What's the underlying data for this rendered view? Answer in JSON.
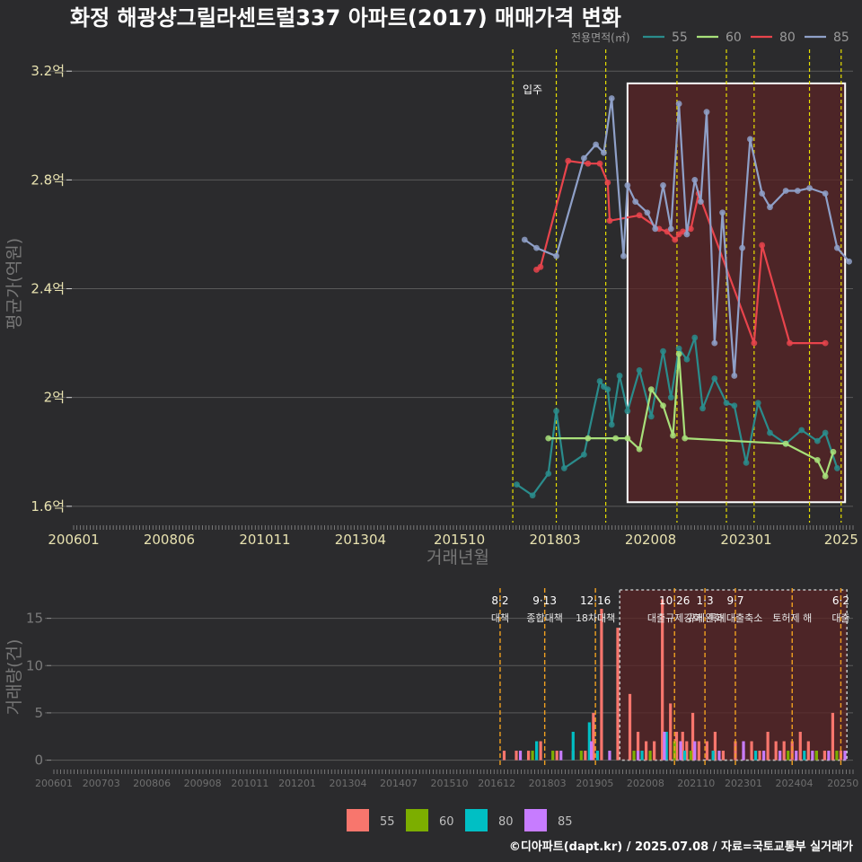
{
  "title": "화정 해광샹그릴라센트럴337 아파트(2017) 매매가격 변화",
  "footer": "©디아파트(dapt.kr) / 2025.07.08 / 자료=국토교통부 실거래가",
  "colors": {
    "background": "#2b2b2d",
    "grid": "#5a5a5a",
    "vline": "#e8e000",
    "vline_bottom": "#f0a020",
    "highlight_fill": "#5a2426",
    "s55": "#2a8c8c",
    "s60": "#a8e07a",
    "s80": "#e8444c",
    "s85": "#8fa0c8",
    "b55": "#f8766d",
    "b60": "#7cae00",
    "b80": "#00bfc4",
    "b85": "#c77cff"
  },
  "chart_data": [
    {
      "type": "line",
      "name": "price",
      "title": "화정 해광샹그릴라센트럴337 아파트(2017) 매매가격 변화",
      "xlabel": "거래년월",
      "ylabel": "평균가(억원)",
      "xlim": [
        2006.0,
        2025.7
      ],
      "ylim": [
        1.54,
        3.28
      ],
      "x_ticks": [
        {
          "v": 2006.0,
          "label": "200601"
        },
        {
          "v": 2008.4167,
          "label": "200806"
        },
        {
          "v": 2010.8333,
          "label": "201011"
        },
        {
          "v": 2013.25,
          "label": "201304"
        },
        {
          "v": 2015.75,
          "label": "201510"
        },
        {
          "v": 2018.1667,
          "label": "201803"
        },
        {
          "v": 2020.5833,
          "label": "202008"
        },
        {
          "v": 2023.0,
          "label": "202301"
        },
        {
          "v": 2025.4,
          "label": "2025"
        }
      ],
      "y_ticks": [
        {
          "v": 1.6,
          "label": "1.6억"
        },
        {
          "v": 2.0,
          "label": "2억"
        },
        {
          "v": 2.4,
          "label": "2.4억"
        },
        {
          "v": 2.8,
          "label": "2.8억"
        },
        {
          "v": 3.2,
          "label": "3.2억"
        }
      ],
      "legend_title": "전용면적(㎡)",
      "annotation": "입주",
      "vlines": [
        2017.1,
        2018.2,
        2019.45,
        2021.25,
        2022.5,
        2023.2,
        2024.6,
        2025.4
      ],
      "highlight": {
        "x0": 2020.0,
        "x1": 2025.5,
        "y0": 1.615,
        "y1": 3.155
      },
      "series": [
        {
          "name": "55",
          "color_key": "s55",
          "x": [
            2017.2,
            2017.6,
            2018.0,
            2018.2,
            2018.4,
            2018.9,
            2019.3,
            2019.4,
            2019.5,
            2019.6,
            2019.8,
            2020.0,
            2020.3,
            2020.6,
            2020.9,
            2021.1,
            2021.3,
            2021.5,
            2021.7,
            2021.9,
            2022.2,
            2022.5,
            2022.7,
            2023.0,
            2023.3,
            2023.6,
            2024.0,
            2024.4,
            2024.8,
            2025.0,
            2025.3
          ],
          "y": [
            1.68,
            1.64,
            1.72,
            1.95,
            1.74,
            1.79,
            2.06,
            2.04,
            2.03,
            1.9,
            2.08,
            1.95,
            2.1,
            1.93,
            2.17,
            2.0,
            2.18,
            2.14,
            2.22,
            1.96,
            2.07,
            1.98,
            1.97,
            1.76,
            1.98,
            1.87,
            1.83,
            1.88,
            1.84,
            1.87,
            1.74
          ]
        },
        {
          "name": "60",
          "color_key": "s60",
          "x": [
            2018.0,
            2019.0,
            2019.7,
            2020.0,
            2020.3,
            2020.6,
            2020.9,
            2021.15,
            2021.3,
            2021.45,
            2024.0,
            2024.8,
            2025.0,
            2025.2
          ],
          "y": [
            1.85,
            1.85,
            1.85,
            1.85,
            1.81,
            2.03,
            1.97,
            1.86,
            2.16,
            1.85,
            1.83,
            1.77,
            1.71,
            1.8
          ]
        },
        {
          "name": "80",
          "color_key": "s80",
          "x": [
            2017.7,
            2017.8,
            2018.5,
            2019.0,
            2019.3,
            2019.5,
            2019.55,
            2020.3,
            2020.8,
            2021.0,
            2021.2,
            2021.3,
            2021.4,
            2021.6,
            2021.8,
            2023.2,
            2023.4,
            2024.1,
            2025.0
          ],
          "y": [
            2.47,
            2.48,
            2.87,
            2.86,
            2.86,
            2.79,
            2.65,
            2.67,
            2.62,
            2.61,
            2.58,
            2.6,
            2.61,
            2.62,
            2.75,
            2.2,
            2.56,
            2.2,
            2.2
          ]
        },
        {
          "name": "85",
          "color_key": "s85",
          "x": [
            2017.4,
            2017.7,
            2018.2,
            2018.9,
            2019.2,
            2019.4,
            2019.6,
            2019.9,
            2020.0,
            2020.2,
            2020.5,
            2020.7,
            2020.9,
            2021.1,
            2021.3,
            2021.5,
            2021.7,
            2021.85,
            2022.0,
            2022.2,
            2022.4,
            2022.7,
            2022.9,
            2023.1,
            2023.4,
            2023.6,
            2024.0,
            2024.3,
            2024.6,
            2025.0,
            2025.3,
            2025.6
          ],
          "y": [
            2.58,
            2.55,
            2.52,
            2.88,
            2.93,
            2.9,
            3.1,
            2.52,
            2.78,
            2.72,
            2.68,
            2.62,
            2.78,
            2.62,
            3.08,
            2.6,
            2.8,
            2.72,
            3.05,
            2.2,
            2.68,
            2.08,
            2.55,
            2.95,
            2.75,
            2.7,
            2.76,
            2.76,
            2.77,
            2.75,
            2.55,
            2.5
          ]
        }
      ]
    },
    {
      "type": "bar",
      "name": "volume",
      "ylabel": "거래량(건)",
      "xlim": [
        2006.0,
        2025.7
      ],
      "ylim": [
        -0.8,
        18
      ],
      "x_ticks": [
        {
          "v": 2006.0,
          "label": "200601"
        },
        {
          "v": 2007.1667,
          "label": "200703"
        },
        {
          "v": 2008.4167,
          "label": "200806"
        },
        {
          "v": 2009.6667,
          "label": "200908"
        },
        {
          "v": 2010.8333,
          "label": "201011"
        },
        {
          "v": 2012.0,
          "label": "201201"
        },
        {
          "v": 2013.25,
          "label": "201304"
        },
        {
          "v": 2014.5,
          "label": "201407"
        },
        {
          "v": 2015.75,
          "label": "201510"
        },
        {
          "v": 2016.9167,
          "label": "201612"
        },
        {
          "v": 2018.1667,
          "label": "201803"
        },
        {
          "v": 2019.3333,
          "label": "201905"
        },
        {
          "v": 2020.5833,
          "label": "202008"
        },
        {
          "v": 2021.8333,
          "label": "202110"
        },
        {
          "v": 2023.0,
          "label": "202301"
        },
        {
          "v": 2024.25,
          "label": "202404"
        },
        {
          "v": 2025.45,
          "label": "20250"
        }
      ],
      "y_ticks": [
        {
          "v": 0,
          "label": "0"
        },
        {
          "v": 5,
          "label": "5"
        },
        {
          "v": 10,
          "label": "10"
        },
        {
          "v": 15,
          "label": "15"
        }
      ],
      "events": [
        {
          "x": 2017.0,
          "date": "8·2",
          "text": "대책"
        },
        {
          "x": 2018.1,
          "date": "9·13",
          "text": "종합대책"
        },
        {
          "x": 2019.35,
          "date": "12·16",
          "text": "18차대책"
        },
        {
          "x": 2021.3,
          "date": "10·26",
          "text": "대출규제강화"
        },
        {
          "x": 2022.05,
          "date": "1·3",
          "text": "규제완화"
        },
        {
          "x": 2022.8,
          "date": "9·7",
          "text": "특례대출축소"
        },
        {
          "x": 2024.2,
          "date": "",
          "text": "토허제 해"
        },
        {
          "x": 2025.4,
          "date": "6·2",
          "text": "대출"
        }
      ],
      "highlight": {
        "x0": 2019.95,
        "x1": 2025.55,
        "y0": 0,
        "y1": 18
      },
      "legend": [
        "55",
        "60",
        "80",
        "85"
      ],
      "series": [
        {
          "name": "55",
          "color_key": "b55",
          "x": [
            2017.1,
            2017.4,
            2017.7,
            2018.0,
            2018.4,
            2018.8,
            2019.1,
            2019.3,
            2019.5,
            2019.9,
            2020.2,
            2020.4,
            2020.6,
            2020.8,
            2021.0,
            2021.2,
            2021.35,
            2021.5,
            2021.6,
            2021.75,
            2021.9,
            2022.1,
            2022.3,
            2022.5,
            2022.8,
            2023.0,
            2023.2,
            2023.4,
            2023.6,
            2023.8,
            2024.0,
            2024.2,
            2024.4,
            2024.6,
            2024.8,
            2025.0,
            2025.2,
            2025.4
          ],
          "values": [
            1,
            1,
            1,
            2,
            1,
            1,
            1,
            5,
            16,
            14,
            7,
            3,
            2,
            2,
            17,
            6,
            3,
            3,
            2,
            5,
            2,
            2,
            3,
            1,
            2,
            1,
            2,
            1,
            3,
            2,
            2,
            2,
            3,
            2,
            1,
            1,
            5,
            1
          ]
        },
        {
          "name": "60",
          "color_key": "b60",
          "x": [
            2017.8,
            2018.3,
            2019.0,
            2020.3,
            2020.7,
            2021.3,
            2021.7,
            2024.1,
            2024.8,
            2025.3
          ],
          "values": [
            1,
            1,
            1,
            1,
            1,
            2,
            1,
            1,
            1,
            1
          ]
        },
        {
          "name": "80",
          "color_key": "b80",
          "x": [
            2017.9,
            2018.8,
            2019.2,
            2019.4,
            2020.5,
            2021.1,
            2021.55,
            2022.25,
            2023.3,
            2024.5
          ],
          "values": [
            2,
            3,
            4,
            1,
            1,
            3,
            1,
            1,
            1,
            1
          ]
        },
        {
          "name": "85",
          "color_key": "b85",
          "x": [
            2017.5,
            2018.5,
            2019.25,
            2019.7,
            2020.4,
            2021.05,
            2021.45,
            2021.8,
            2022.4,
            2023.0,
            2023.5,
            2023.9,
            2024.3,
            2024.7,
            2025.1,
            2025.5
          ],
          "values": [
            1,
            1,
            2,
            1,
            1,
            3,
            2,
            2,
            1,
            2,
            1,
            1,
            1,
            1,
            1,
            1
          ]
        }
      ]
    }
  ]
}
